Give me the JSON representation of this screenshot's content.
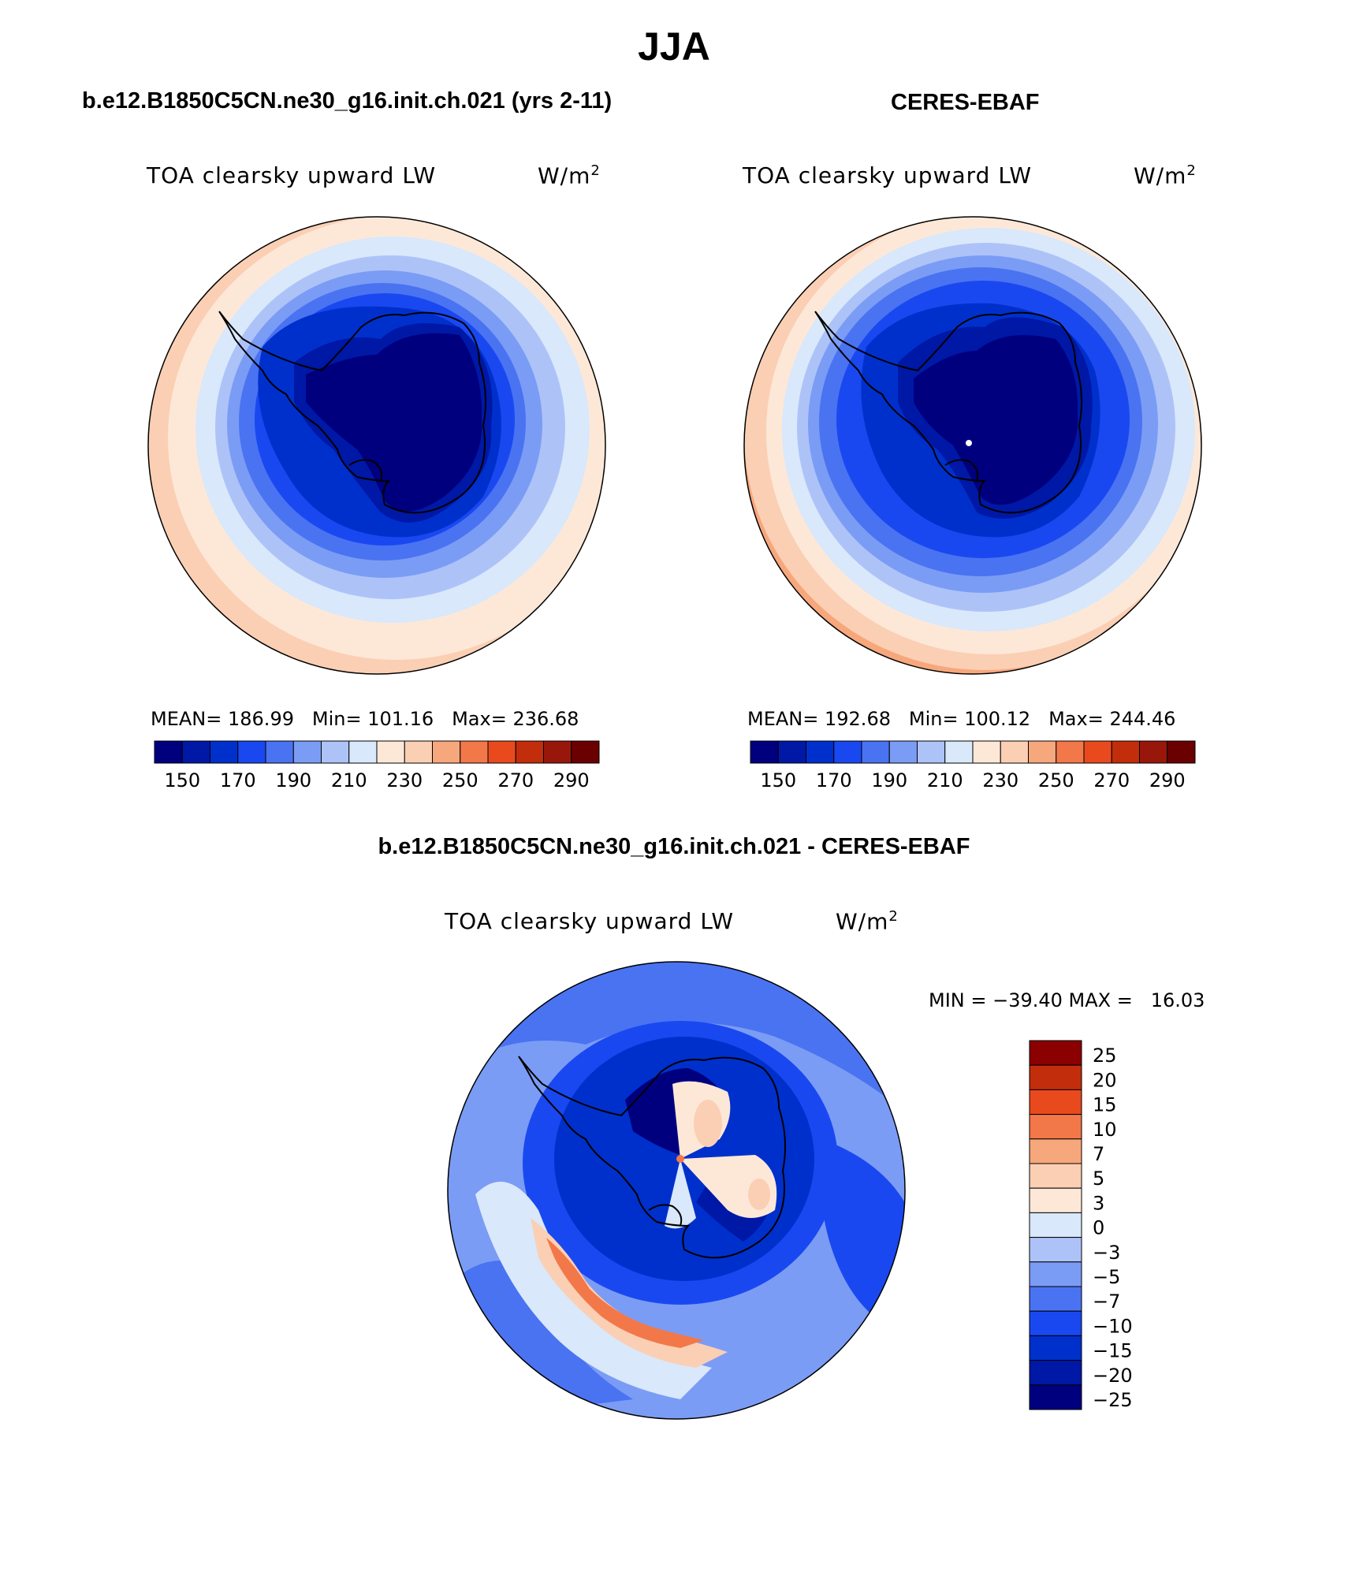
{
  "figure": {
    "title": "JJA",
    "diff_title": "b.e12.B1850C5CN.ne30_g16.init.ch.021 - CERES-EBAF"
  },
  "colors": {
    "levels": [
      "#00007f",
      "#0018a6",
      "#0030cc",
      "#1a48f0",
      "#4a73f2",
      "#7b9cf5",
      "#adc3f8",
      "#d9e8fb",
      "#fde8d8",
      "#fbcfb4",
      "#f7a77c",
      "#f2784a",
      "#e84a1e",
      "#c22e0c",
      "#98170a",
      "#6b0000"
    ],
    "diff_levels": [
      "#00007f",
      "#0018a6",
      "#0030cc",
      "#1a48f0",
      "#4a73f2",
      "#7b9cf5",
      "#adc3f8",
      "#d9e8fb",
      "#fde8d8",
      "#fbcfb4",
      "#f7a77c",
      "#f2784a",
      "#e84a1e",
      "#c22e0c",
      "#8b0000"
    ],
    "coast": "#000000"
  },
  "panels": [
    {
      "subtitle": "b.e12.B1850C5CN.ne30_g16.init.ch.021 (yrs 2-11)",
      "variable": "TOA clearsky upward LW",
      "units": "W/m",
      "units_exp": "2",
      "stats": {
        "mean_label": "MEAN=",
        "mean": "186.99",
        "min_label": "Min=",
        "min": "101.16",
        "max_label": "Max=",
        "max": "236.68"
      }
    },
    {
      "subtitle": "CERES-EBAF",
      "variable": "TOA clearsky upward LW",
      "units": "W/m",
      "units_exp": "2",
      "stats": {
        "mean_label": "MEAN=",
        "mean": "192.68",
        "min_label": "Min=",
        "min": "100.12",
        "max_label": "Max=",
        "max": "244.46"
      }
    }
  ],
  "diff_panel": {
    "variable": "TOA clearsky upward LW",
    "units": "W/m",
    "units_exp": "2",
    "minmax": "MIN = −39.40 MAX =   16.03"
  },
  "chart_data": [
    {
      "type": "heatmap",
      "title": "b.e12.B1850C5CN.ne30_g16.init.ch.021 (yrs 2-11)",
      "variable": "TOA clearsky upward LW",
      "units": "W/m^2",
      "projection": "south polar stereographic",
      "colorbar_ticks": [
        "150",
        "170",
        "190",
        "210",
        "230",
        "250",
        "270",
        "290"
      ],
      "mean": 186.99,
      "min": 101.16,
      "max": 236.68
    },
    {
      "type": "heatmap",
      "title": "CERES-EBAF",
      "variable": "TOA clearsky upward LW",
      "units": "W/m^2",
      "projection": "south polar stereographic",
      "colorbar_ticks": [
        "150",
        "170",
        "190",
        "210",
        "230",
        "250",
        "270",
        "290"
      ],
      "mean": 192.68,
      "min": 100.12,
      "max": 244.46
    },
    {
      "type": "heatmap",
      "title": "b.e12.B1850C5CN.ne30_g16.init.ch.021 - CERES-EBAF",
      "variable": "TOA clearsky upward LW",
      "units": "W/m^2",
      "projection": "south polar stereographic",
      "colorbar_ticks": [
        "25",
        "20",
        "15",
        "10",
        "7",
        "5",
        "3",
        "0",
        "−3",
        "−5",
        "−7",
        "−10",
        "−15",
        "−20",
        "−25"
      ],
      "min": -39.4,
      "max": 16.03
    }
  ]
}
